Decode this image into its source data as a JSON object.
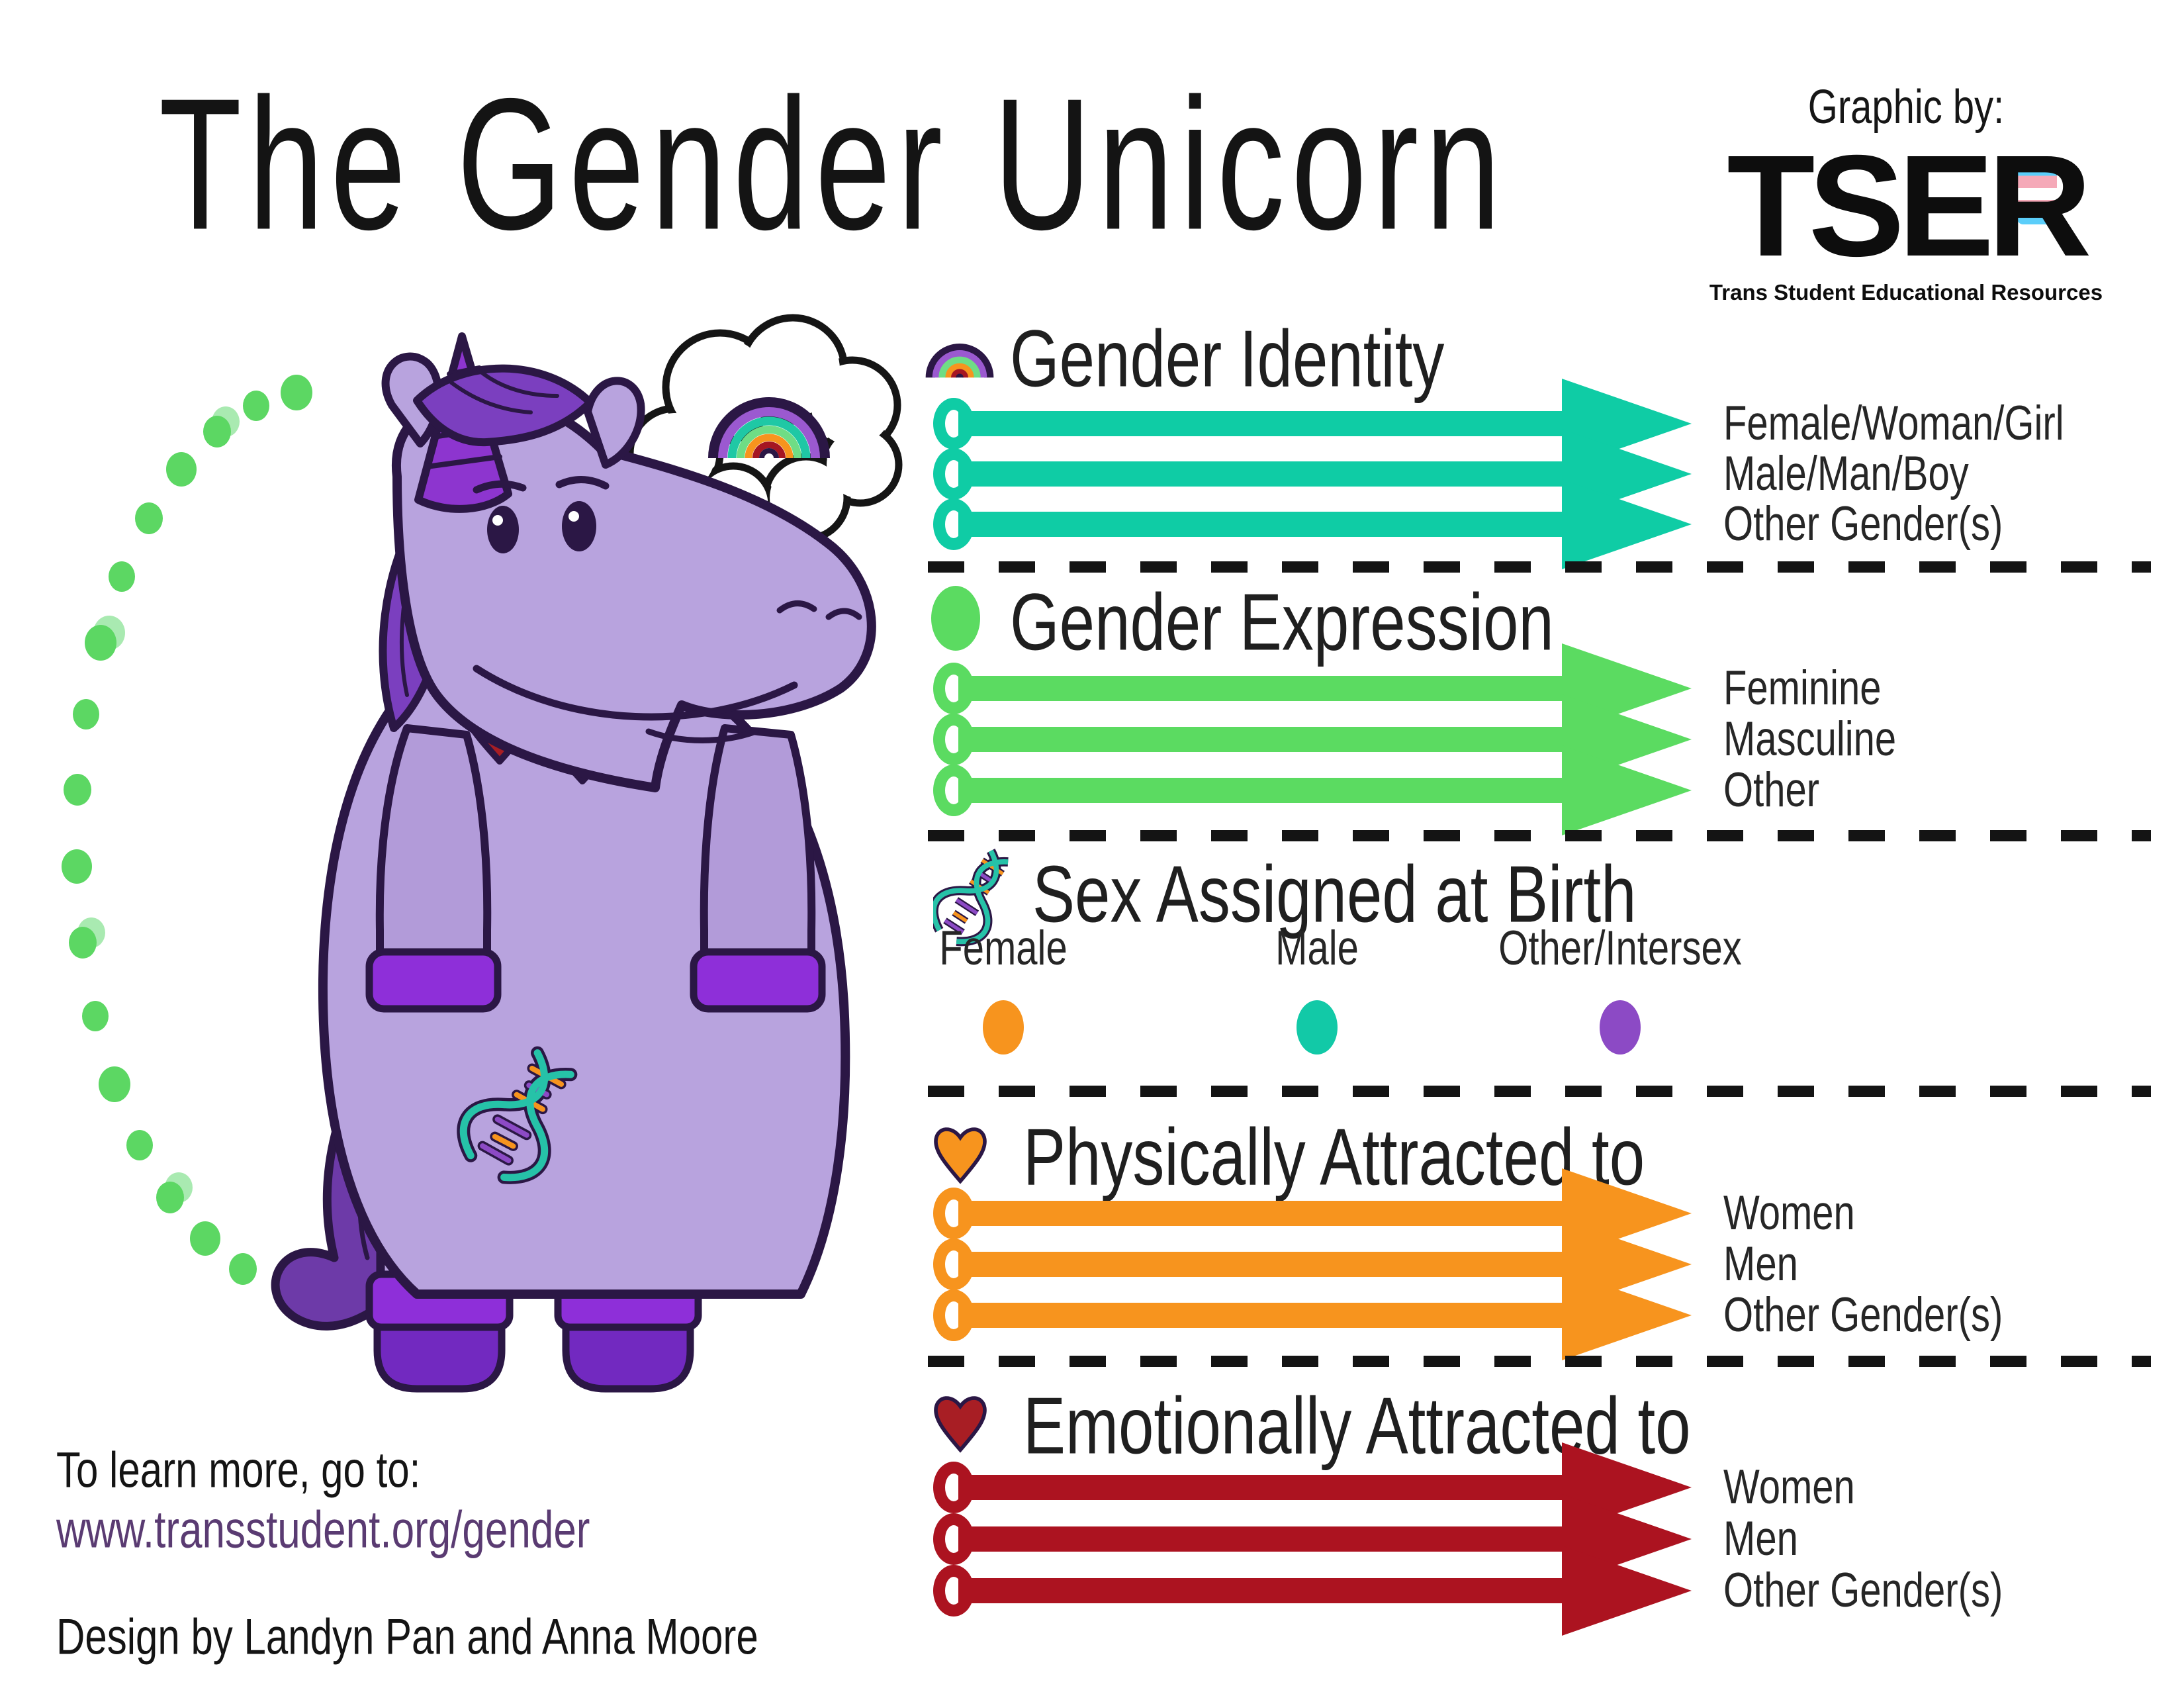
{
  "title": "The Gender Unicorn",
  "credit": {
    "graphic_by": "Graphic by:",
    "org": "TSER",
    "org_full": "Trans Student Educational Resources"
  },
  "palette": {
    "teal": "#0fcca5",
    "green": "#5bdb61",
    "orange": "#f7941e",
    "dark_red": "#ac1320",
    "purple": "#8c4ac5",
    "link_purple": "#5a3b72"
  },
  "sections": [
    {
      "id": "gender-identity",
      "icon": "rainbow-icon",
      "title": "Gender Identity",
      "arrow_color": "#0fcca5",
      "rows": [
        "Female/Woman/Girl",
        "Male/Man/Boy",
        "Other Gender(s)"
      ]
    },
    {
      "id": "gender-expression",
      "icon": "green-dot-icon",
      "title": "Gender Expression",
      "arrow_color": "#5bdb61",
      "rows": [
        "Feminine",
        "Masculine",
        "Other"
      ]
    },
    {
      "id": "sex-assigned-at-birth",
      "icon": "dna-icon",
      "title": "Sex Assigned at Birth",
      "categories": [
        {
          "label": "Female",
          "color": "#f7941e"
        },
        {
          "label": "Male",
          "color": "#12c9a7"
        },
        {
          "label": "Other/Intersex",
          "color": "#8c4ac5"
        }
      ]
    },
    {
      "id": "physically-attracted-to",
      "icon": "heart-orange-icon",
      "title": "Physically Attracted to",
      "arrow_color": "#f7941e",
      "rows": [
        "Women",
        "Men",
        "Other Gender(s)"
      ]
    },
    {
      "id": "emotionally-attracted-to",
      "icon": "heart-red-icon",
      "title": "Emotionally Attracted to",
      "arrow_color": "#ac1320",
      "rows": [
        "Women",
        "Men",
        "Other Gender(s)"
      ]
    }
  ],
  "footer": {
    "learn_more": "To learn more, go to:",
    "url": "www.transstudent.org/gender",
    "design": "Design by Landyn Pan and Anna Moore"
  }
}
